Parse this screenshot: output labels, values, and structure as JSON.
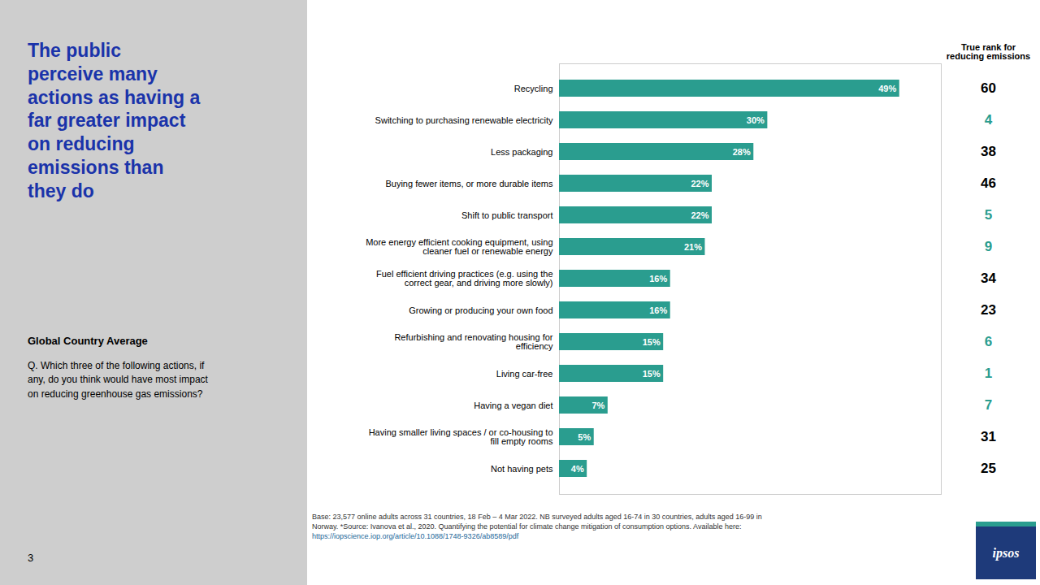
{
  "chart_data": {
    "type": "bar",
    "orientation": "horizontal",
    "title": "The public\nperceive many\nactions as having a\nfar greater impact\non reducing\nemissions than\nthey do",
    "title_color": "#1a33aa",
    "subtitle": "Global Country Average",
    "question": "Q. Which three of the following actions, if\nany, do you think would have most impact\non reducing greenhouse gas emissions?",
    "page_number": "3",
    "categories": [
      "Recycling",
      "Switching to purchasing renewable electricity",
      "Less packaging",
      "Buying fewer items, or more durable items",
      "Shift to public transport",
      "More energy efficient cooking equipment, using\ncleaner fuel or renewable energy",
      "Fuel efficient driving practices (e.g. using the\ncorrect gear, and driving more slowly)",
      "Growing or producing your own food",
      "Refurbishing and renovating housing for\nefficiency",
      "Living car-free",
      "Having a vegan diet",
      "Having smaller living spaces / or co-housing to\nfill empty rooms",
      "Not having pets"
    ],
    "values": [
      49,
      30,
      28,
      22,
      22,
      21,
      16,
      16,
      15,
      15,
      7,
      5,
      4
    ],
    "value_labels": [
      "49%",
      "30%",
      "28%",
      "22%",
      "22%",
      "21%",
      "16%",
      "16%",
      "15%",
      "15%",
      "7%",
      "5%",
      "4%"
    ],
    "data_labels": true,
    "color": "#2a9d8f",
    "xlim": [
      0,
      55
    ],
    "tick_labels": "y",
    "true_rank_header": "True rank for\nreducing emissions",
    "true_ranks": [
      60,
      4,
      38,
      46,
      5,
      9,
      34,
      23,
      6,
      1,
      7,
      31,
      25
    ],
    "true_rank_colors": [
      "#000000",
      "#2a9d8f",
      "#000000",
      "#000000",
      "#2a9d8f",
      "#2a9d8f",
      "#000000",
      "#000000",
      "#2a9d8f",
      "#2a9d8f",
      "#2a9d8f",
      "#000000",
      "#000000"
    ],
    "footnote": "Base: 23,577 online adults across 31 countries,  18 Feb – 4 Mar 2022. NB surveyed adults aged 16-74 in 30 countries, adults aged 16-99 in\nNorway. *Source: Ivanova et al., 2020. Quantifying the potential for climate change mitigation of consumption options. Available here:",
    "footnote_link": "https://iopscience.iop.org/article/10.1088/1748-9326/ab8589/pdf",
    "logo_text": "ipsos"
  }
}
